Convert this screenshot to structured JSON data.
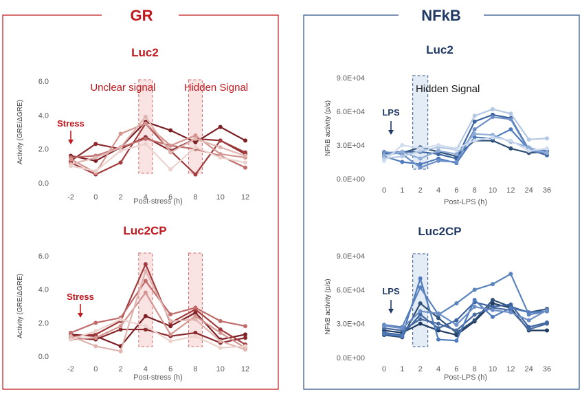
{
  "panels": {
    "gr": {
      "title": "GR",
      "border_color": "#c0181e"
    },
    "nfkb": {
      "title": "NFkB",
      "border_color": "#2e5288"
    }
  },
  "chart_data": [
    {
      "id": "gr_luc2",
      "panel": "gr",
      "type": "line",
      "title": "Luc2",
      "xlabel": "Post-stress (h)",
      "ylabel": "Activity (GRE/ΔGRE)",
      "categories": [
        "-2",
        "0",
        "2",
        "4",
        "6",
        "8",
        "10",
        "12"
      ],
      "ylim": [
        0,
        6
      ],
      "yticks": [
        "0.0",
        "2.0",
        "4.0",
        "6.0"
      ],
      "marker_label": "Stress",
      "marker_index": 0,
      "marker_value": 2.8,
      "highlights": [
        {
          "label": "Unclear signal",
          "index": 3
        },
        {
          "label": "Hidden  Signal",
          "index": 5
        }
      ],
      "series": [
        {
          "name": "s1",
          "color": "#7b1f24",
          "values": [
            1.6,
            1.3,
            2.1,
            3.6,
            3.1,
            2.4,
            3.3,
            2.5
          ]
        },
        {
          "name": "s2",
          "color": "#8b2a2e",
          "values": [
            1.3,
            2.3,
            2.0,
            2.7,
            1.9,
            2.6,
            2.5,
            1.7
          ]
        },
        {
          "name": "s3",
          "color": "#a23b3d",
          "values": [
            1.2,
            0.5,
            1.2,
            3.5,
            1.9,
            0.5,
            2.5,
            1.8
          ]
        },
        {
          "name": "s4",
          "color": "#c06a6a",
          "values": [
            1.5,
            1.6,
            2.1,
            2.6,
            2.2,
            2.0,
            1.6,
            0.9
          ]
        },
        {
          "name": "s5",
          "color": "#d49590",
          "values": [
            1.4,
            0.6,
            2.9,
            3.5,
            2.2,
            2.8,
            1.7,
            1.5
          ]
        },
        {
          "name": "s6",
          "color": "#e0b4af",
          "values": [
            1.1,
            1.5,
            2.1,
            3.9,
            1.8,
            2.6,
            2.1,
            1.6
          ]
        },
        {
          "name": "s7",
          "color": "#ecd2cd",
          "values": [
            1.0,
            0.7,
            1.9,
            2.3,
            0.8,
            2.1,
            1.5,
            1.2
          ]
        }
      ]
    },
    {
      "id": "gr_luc2cp",
      "panel": "gr",
      "type": "line",
      "title": "Luc2CP",
      "xlabel": "Post-stress (h)",
      "ylabel": "Activity (GRE/ΔGRE)",
      "categories": [
        "-2",
        "0",
        "2",
        "4",
        "6",
        "8",
        "10",
        "12"
      ],
      "ylim": [
        0,
        6
      ],
      "yticks": [
        "0.0",
        "2.0",
        "4.0",
        "6.0"
      ],
      "marker_label": "Stress",
      "marker_index": 0,
      "marker_value": 3.6,
      "highlights": [
        {
          "label": "",
          "index": 3
        },
        {
          "label": "",
          "index": 5
        }
      ],
      "series": [
        {
          "name": "s1",
          "color": "#7b1f24",
          "values": [
            1.3,
            1.2,
            0.6,
            2.4,
            1.8,
            2.6,
            1.0,
            1.3
          ]
        },
        {
          "name": "s2",
          "color": "#8b2a2e",
          "values": [
            1.1,
            1.0,
            1.6,
            1.6,
            1.2,
            1.4,
            0.8,
            1.1
          ]
        },
        {
          "name": "s3",
          "color": "#a23b3d",
          "values": [
            1.2,
            1.3,
            2.1,
            5.5,
            2.0,
            2.8,
            1.6,
            0.7
          ]
        },
        {
          "name": "s4",
          "color": "#c06a6a",
          "values": [
            1.4,
            2.0,
            2.3,
            4.5,
            2.5,
            2.9,
            2.1,
            1.8
          ]
        },
        {
          "name": "s5",
          "color": "#d49590",
          "values": [
            1.0,
            1.1,
            1.8,
            3.8,
            1.3,
            2.4,
            1.4,
            0.5
          ]
        },
        {
          "name": "s6",
          "color": "#e0b4af",
          "values": [
            1.2,
            0.6,
            0.3,
            5.1,
            2.1,
            2.2,
            0.9,
            0.4
          ]
        },
        {
          "name": "s7",
          "color": "#ecd2cd",
          "values": [
            1.0,
            1.5,
            2.2,
            1.8,
            0.9,
            1.2,
            0.5,
            0.6
          ]
        }
      ]
    },
    {
      "id": "nfkb_luc2",
      "panel": "nfkb",
      "type": "line",
      "title": "Luc2",
      "xlabel": "Post-LPS (h)",
      "ylabel": "NFkB activity (p/s)",
      "categories": [
        "0",
        "1",
        "2",
        "4",
        "6",
        "8",
        "10",
        "12",
        "24",
        "36"
      ],
      "ylim": [
        0,
        90000
      ],
      "yticks": [
        "0.0E+00",
        "3.0E+04",
        "6.0E+04",
        "9.0E+04"
      ],
      "marker_label": "LPS",
      "marker_index": 0,
      "marker_value": 57000,
      "highlights": [
        {
          "label": "Hidden  Signal",
          "index": 2
        }
      ],
      "series": [
        {
          "name": "s1",
          "color": "#2f5076",
          "values": [
            22000,
            23000,
            28000,
            24000,
            20000,
            34000,
            34000,
            27000,
            23000,
            24000
          ]
        },
        {
          "name": "s2",
          "color": "#3b63a0",
          "values": [
            23000,
            24000,
            24000,
            22000,
            18000,
            51000,
            57000,
            54000,
            26000,
            21000
          ]
        },
        {
          "name": "s3",
          "color": "#4f7bbd",
          "values": [
            20000,
            15000,
            13000,
            18000,
            14000,
            37000,
            36000,
            44000,
            26000,
            25000
          ]
        },
        {
          "name": "s4",
          "color": "#6b8fc6",
          "values": [
            24000,
            22000,
            10000,
            16000,
            15000,
            44000,
            55000,
            53000,
            25000,
            23000
          ]
        },
        {
          "name": "s5",
          "color": "#8fadd6",
          "values": [
            21000,
            24000,
            18000,
            25000,
            22000,
            40000,
            39000,
            33000,
            28000,
            23000
          ]
        },
        {
          "name": "s6",
          "color": "#b4c8e4",
          "values": [
            18000,
            20000,
            25000,
            28000,
            26000,
            56000,
            62000,
            58000,
            35000,
            36000
          ]
        },
        {
          "name": "s7",
          "color": "#cfdbee",
          "values": [
            16000,
            30000,
            27000,
            30000,
            27000,
            34000,
            37000,
            34000,
            25000,
            27000
          ]
        }
      ]
    },
    {
      "id": "nfkb_luc2cp",
      "panel": "nfkb",
      "type": "line",
      "title": "Luc2CP",
      "xlabel": "Post-LPS (h)",
      "ylabel": "NFkB activity (p/s)",
      "categories": [
        "0",
        "1",
        "2",
        "4",
        "6",
        "8",
        "10",
        "12",
        "24",
        "36"
      ],
      "ylim": [
        0,
        90000
      ],
      "yticks": [
        "0.0E+00",
        "3.0E+04",
        "6.0E+04",
        "9.0E+04"
      ],
      "marker_label": "LPS",
      "marker_index": 0,
      "marker_value": 56000,
      "highlights": [
        {
          "label": "",
          "index": 2
        }
      ],
      "series": [
        {
          "name": "s1",
          "color": "#1f3a5f",
          "values": [
            24000,
            22000,
            30000,
            24000,
            20000,
            32000,
            48000,
            44000,
            24000,
            24000
          ]
        },
        {
          "name": "s2",
          "color": "#2f5076",
          "values": [
            20000,
            18000,
            48000,
            35000,
            22000,
            33000,
            51000,
            45000,
            40000,
            43000
          ]
        },
        {
          "name": "s3",
          "color": "#3b63a0",
          "values": [
            22000,
            20000,
            38000,
            26000,
            33000,
            49000,
            45000,
            47000,
            27000,
            31000
          ]
        },
        {
          "name": "s4",
          "color": "#46699f",
          "values": [
            26000,
            24000,
            34000,
            30000,
            24000,
            38000,
            44000,
            42000,
            25000,
            30000
          ]
        },
        {
          "name": "s5",
          "color": "#4f7bbd",
          "values": [
            21000,
            19000,
            70000,
            16000,
            15000,
            51000,
            36000,
            44000,
            40000,
            41000
          ]
        },
        {
          "name": "s6",
          "color": "#5a83bd",
          "values": [
            29000,
            27000,
            62000,
            38000,
            48000,
            60000,
            65000,
            74000,
            38000,
            41000
          ]
        },
        {
          "name": "s7",
          "color": "#6b8fc6",
          "values": [
            28000,
            26000,
            41000,
            39000,
            29000,
            45000,
            42000,
            40000,
            33000,
            42000
          ]
        }
      ]
    }
  ]
}
